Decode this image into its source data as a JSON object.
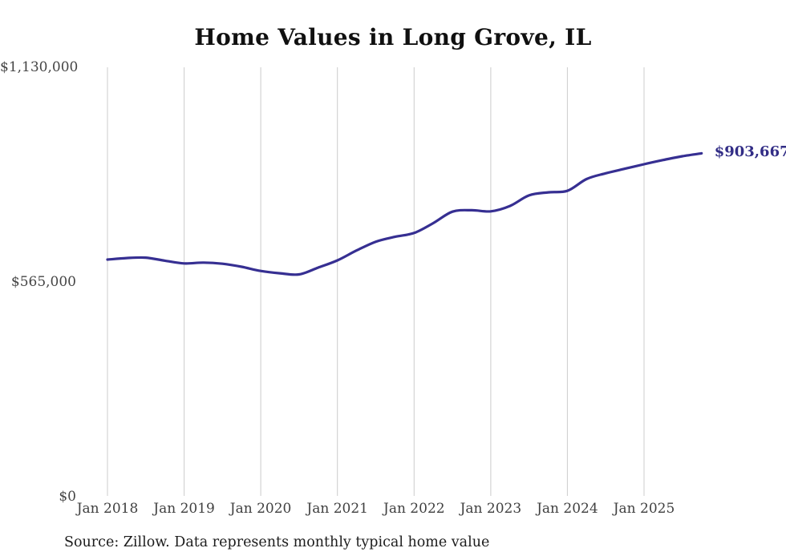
{
  "colors": {
    "line": "#362f92",
    "end_label": "#322d86",
    "gridline": "#cccccc",
    "axis_text": "#444444",
    "title_text": "#101010"
  },
  "chart_data": {
    "type": "line",
    "title": "Home Values in Long Grove, IL",
    "source": "Source: Zillow. Data represents monthly typical home value",
    "latest_label": "$903,667",
    "latest_value": 903667,
    "xlabel": "",
    "ylabel": "",
    "ylim": [
      0,
      1130000
    ],
    "grid": "vertical-only",
    "legend": false,
    "y_ticks": [
      {
        "value": 0,
        "label": "$0"
      },
      {
        "value": 565000,
        "label": "$565,000"
      },
      {
        "value": 1130000,
        "label": "$1,130,000"
      }
    ],
    "x_ticks": [
      {
        "month": "2018-01",
        "label": "Jan 2018"
      },
      {
        "month": "2019-01",
        "label": "Jan 2019"
      },
      {
        "month": "2020-01",
        "label": "Jan 2020"
      },
      {
        "month": "2021-01",
        "label": "Jan 2021"
      },
      {
        "month": "2022-01",
        "label": "Jan 2022"
      },
      {
        "month": "2023-01",
        "label": "Jan 2023"
      },
      {
        "month": "2024-01",
        "label": "Jan 2024"
      },
      {
        "month": "2025-01",
        "label": "Jan 2025"
      }
    ],
    "series": [
      {
        "name": "Typical home value",
        "x": [
          "2018-01",
          "2018-04",
          "2018-07",
          "2018-10",
          "2019-01",
          "2019-04",
          "2019-07",
          "2019-10",
          "2020-01",
          "2020-04",
          "2020-07",
          "2020-10",
          "2021-01",
          "2021-04",
          "2021-07",
          "2021-10",
          "2022-01",
          "2022-04",
          "2022-07",
          "2022-10",
          "2023-01",
          "2023-04",
          "2023-07",
          "2023-10",
          "2024-01",
          "2024-04",
          "2024-07",
          "2024-10",
          "2025-01",
          "2025-04",
          "2025-07",
          "2025-10"
        ],
        "values": [
          624000,
          628000,
          629000,
          621000,
          614000,
          616000,
          613000,
          605000,
          594000,
          588000,
          585000,
          603000,
          622000,
          648000,
          671000,
          684000,
          694000,
          720000,
          750000,
          754000,
          751000,
          765000,
          793000,
          801000,
          805000,
          836000,
          851000,
          863000,
          875000,
          886000,
          896000,
          903667
        ]
      }
    ]
  }
}
